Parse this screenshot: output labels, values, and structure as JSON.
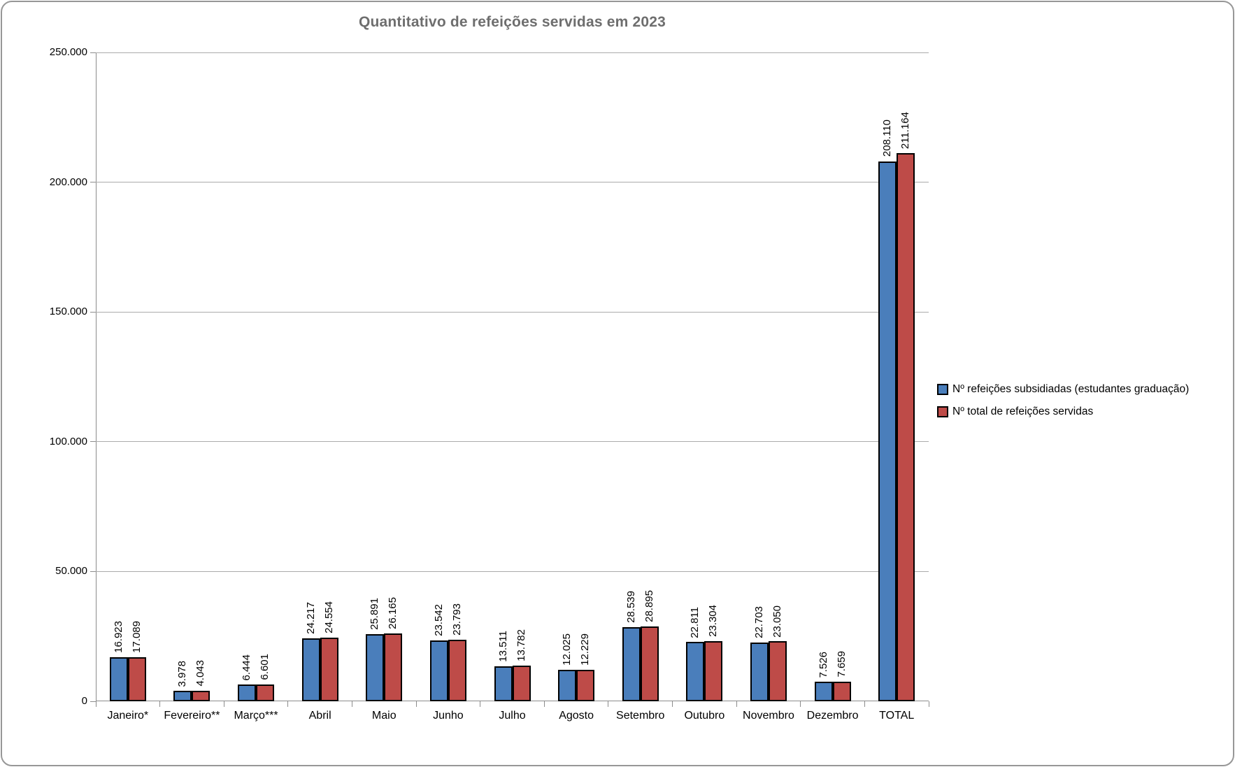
{
  "chart_data": {
    "type": "bar",
    "title": "Quantitativo de refeições servidas em 2023",
    "xlabel": "",
    "ylabel": "",
    "ylim": [
      0,
      250000
    ],
    "grid": true,
    "legend_position": "right",
    "categories": [
      "Janeiro*",
      "Fevereiro**",
      "Março***",
      "Abril",
      "Maio",
      "Junho",
      "Julho",
      "Agosto",
      "Setembro",
      "Outubro",
      "Novembro",
      "Dezembro",
      "TOTAL"
    ],
    "yticks": [
      {
        "value": 0,
        "label": "0"
      },
      {
        "value": 50000,
        "label": "50.000"
      },
      {
        "value": 100000,
        "label": "100.000"
      },
      {
        "value": 150000,
        "label": "150.000"
      },
      {
        "value": 200000,
        "label": "200.000"
      },
      {
        "value": 250000,
        "label": "250.000"
      }
    ],
    "series": [
      {
        "name": "Nº refeições subsidiadas (estudantes graduação)",
        "color": "#4A7EBB",
        "values": [
          16923,
          3978,
          6444,
          24217,
          25891,
          23542,
          13511,
          12025,
          28539,
          22811,
          22703,
          7526,
          208110
        ],
        "labels": [
          "16.923",
          "3.978",
          "6.444",
          "24.217",
          "25.891",
          "23.542",
          "13.511",
          "12.025",
          "28.539",
          "22.811",
          "22.703",
          "7.526",
          "208.110"
        ]
      },
      {
        "name": "Nº total de refeições servidas",
        "color": "#BE4B48",
        "values": [
          17089,
          4043,
          6601,
          24554,
          26165,
          23793,
          13782,
          12229,
          28895,
          23304,
          23050,
          7659,
          211164
        ],
        "labels": [
          "17.089",
          "4.043",
          "6.601",
          "24.554",
          "26.165",
          "23.793",
          "13.782",
          "12.229",
          "28.895",
          "23.304",
          "23.050",
          "7.659",
          "211.164"
        ]
      }
    ],
    "data_label_rotation_deg": 90,
    "bar_border_color": "#000000"
  }
}
